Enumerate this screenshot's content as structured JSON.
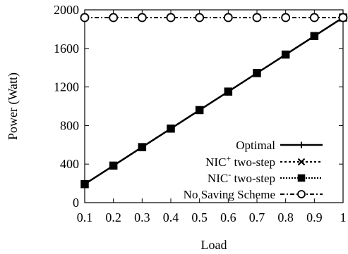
{
  "chart_data": {
    "type": "line",
    "xlabel": "Load",
    "ylabel": "Power (Watt)",
    "xlim": [
      0.1,
      1
    ],
    "ylim": [
      0,
      2000
    ],
    "x_ticks": [
      "0.1",
      "0.2",
      "0.3",
      "0.4",
      "0.5",
      "0.6",
      "0.7",
      "0.8",
      "0.9",
      "1"
    ],
    "y_ticks": [
      "0",
      "400",
      "800",
      "1200",
      "1600",
      "2000"
    ],
    "grid": false,
    "legend_placement": "bottom-right",
    "x": [
      0.1,
      0.2,
      0.3,
      0.4,
      0.5,
      0.6,
      0.7,
      0.8,
      0.9,
      1.0
    ],
    "series": [
      {
        "name": "Optimal",
        "legend_base": "Optimal",
        "legend_sup": "",
        "legend_tail": "",
        "marker": "plus",
        "line": "solid",
        "color": "#000000",
        "values": [
          192,
          384,
          576,
          768,
          960,
          1152,
          1344,
          1536,
          1728,
          1920
        ]
      },
      {
        "name": "NIC+ two-step",
        "legend_base": "NIC",
        "legend_sup": "+",
        "legend_tail": " two-step",
        "marker": "cross",
        "line": "dotted",
        "color": "#000000",
        "values": [
          192,
          384,
          576,
          768,
          960,
          1152,
          1344,
          1536,
          1728,
          1920
        ]
      },
      {
        "name": "NIC- two-step",
        "legend_base": "NIC",
        "legend_sup": "-",
        "legend_tail": " two-step",
        "marker": "square",
        "line": "dense-dotted",
        "color": "#000000",
        "values": [
          192,
          384,
          576,
          768,
          960,
          1152,
          1344,
          1536,
          1728,
          1920
        ]
      },
      {
        "name": "No Saving Scheme",
        "legend_base": "No Saving Scheme",
        "legend_sup": "",
        "legend_tail": "",
        "marker": "circle",
        "line": "dash-dot",
        "color": "#000000",
        "values": [
          1920,
          1920,
          1920,
          1920,
          1920,
          1920,
          1920,
          1920,
          1920,
          1920
        ]
      }
    ]
  }
}
